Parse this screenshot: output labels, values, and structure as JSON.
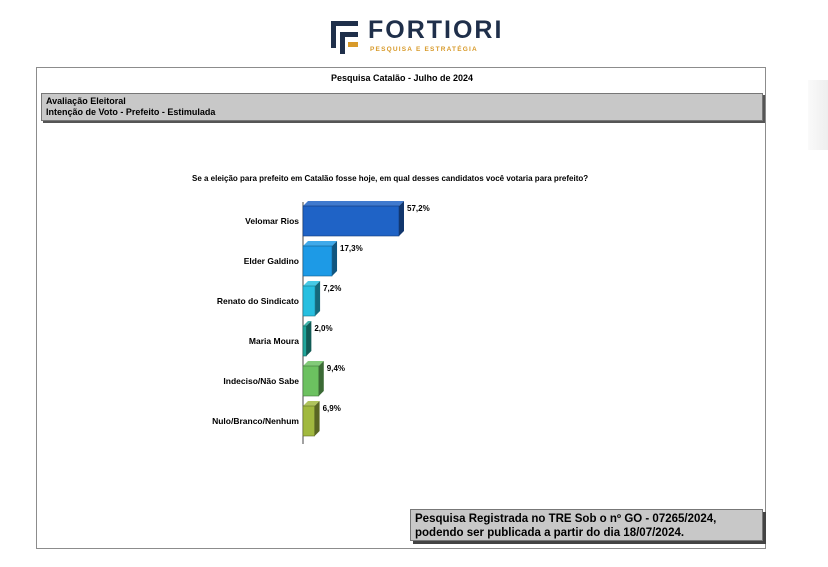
{
  "brand": {
    "name": "FORTIORI",
    "tagline": "PESQUISA E ESTRATÉGIA",
    "colors": {
      "navy": "#1f2f4a",
      "gold": "#d89a2a"
    }
  },
  "survey_title": "Pesquisa Catalão - Julho de 2024",
  "section": {
    "line1": "Avaliação Eleitoral",
    "line2": "Intenção de Voto - Prefeito - Estimulada"
  },
  "chart_data": {
    "type": "bar",
    "orientation": "horizontal",
    "style": "3d",
    "title": "Se a eleição para prefeito em Catalão fosse hoje, em qual desses candidatos você votaria para prefeito?",
    "categories": [
      "Velomar Rios",
      "Elder Galdino",
      "Renato do Sindicato",
      "Maria Moura",
      "Indeciso/Não Sabe",
      "Nulo/Branco/Nenhum"
    ],
    "values": [
      57.2,
      17.3,
      7.2,
      2.0,
      9.4,
      6.9
    ],
    "value_labels": [
      "57,2%",
      "17,3%",
      "7,2%",
      "2,0%",
      "9,4%",
      "6,9%"
    ],
    "colors": [
      "#1f63c6",
      "#1d9ae6",
      "#27bfe0",
      "#1fa59a",
      "#6cc160",
      "#a1b93f"
    ],
    "xlim": [
      0,
      100
    ],
    "grid": false,
    "legend": "none"
  },
  "registration": {
    "line1": "Pesquisa Registrada no TRE Sob o nº GO - 07265/2024,",
    "line2": "podendo ser publicada a partir do dia 18/07/2024."
  }
}
